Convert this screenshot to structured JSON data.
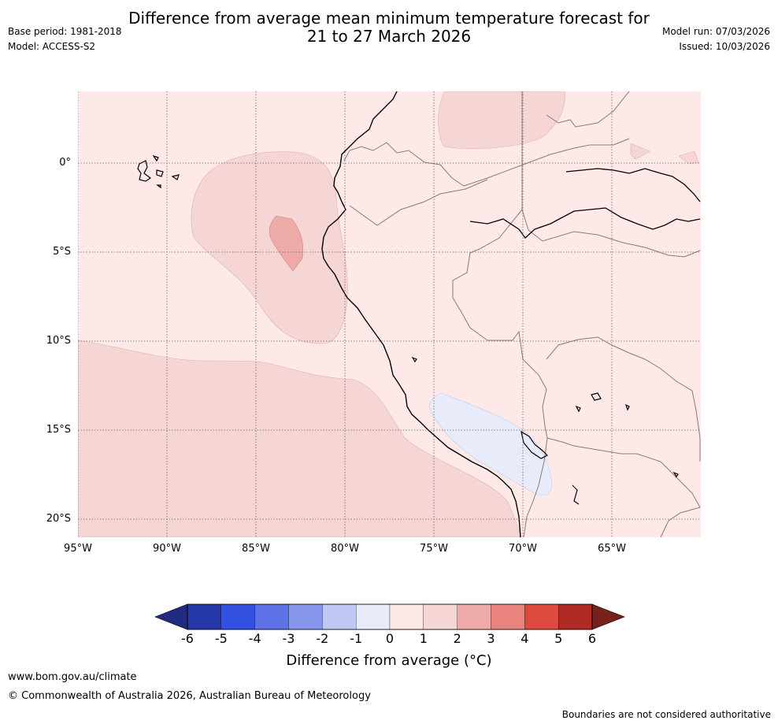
{
  "title": {
    "line1": "Difference from average mean minimum temperature forecast for",
    "line2": "21 to 27 March 2026"
  },
  "header_left": {
    "base_period": "Base period: 1981-2018",
    "model": "Model: ACCESS-S2"
  },
  "header_right": {
    "model_run": "Model run: 07/03/2026",
    "issued": "Issued: 10/03/2026"
  },
  "map": {
    "latitude_labels": [
      "0°",
      "5°S",
      "10°S",
      "15°S",
      "20°S"
    ],
    "longitude_labels": [
      "95°W",
      "90°W",
      "85°W",
      "80°W",
      "75°W",
      "70°W",
      "65°W"
    ]
  },
  "colorbar": {
    "tick_labels": [
      "-6",
      "-5",
      "-4",
      "-3",
      "-2",
      "-1",
      "0",
      "1",
      "2",
      "3",
      "4",
      "5",
      "6"
    ],
    "label": "Difference from average (°C)",
    "colors": {
      "below_min": "#1f2a80",
      "bins": [
        "#2536a8",
        "#3251e0",
        "#5d72e6",
        "#8595eb",
        "#c0c8f3",
        "#e8ebfa",
        "#fce9e8",
        "#f6d6d4",
        "#edaaa6",
        "#e8837d",
        "#dc4a3f",
        "#ae2a22"
      ],
      "above_max": "#74221b"
    }
  },
  "footer": {
    "website": "www.bom.gov.au/climate",
    "copyright": "© Commonwealth of Australia 2026, Australian Bureau of Meteorology",
    "disclaimer": "Boundaries are not considered authoritative"
  }
}
